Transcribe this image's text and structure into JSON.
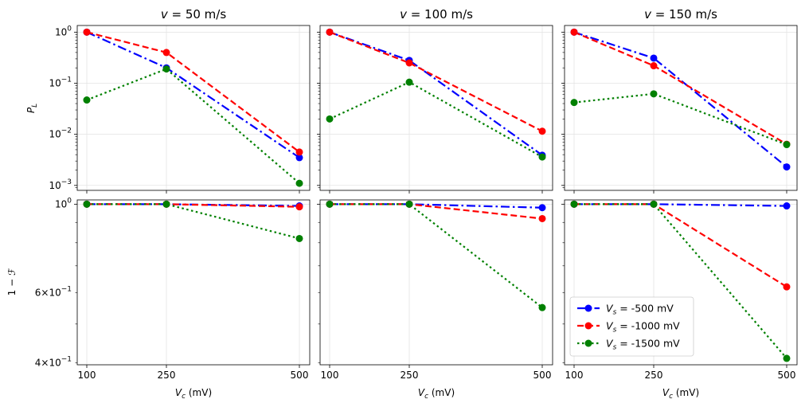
{
  "chart_data": {
    "type": "line",
    "layout": "2x3 grid, shared x-axis per column, shared y-axis per row",
    "x_ticks": [
      100,
      250,
      500
    ],
    "x_label": "V_c (mV)",
    "x_label_parts": {
      "sym": "V",
      "sub": "c",
      "rest": " (mV)"
    },
    "column_titles": [
      {
        "prefix": "v = ",
        "value": "50",
        "unit": " m/s"
      },
      {
        "prefix": "v = ",
        "value": "100",
        "unit": " m/s"
      },
      {
        "prefix": "v = ",
        "value": "150",
        "unit": " m/s"
      }
    ],
    "rows": [
      {
        "name": "P_L",
        "ylabel": {
          "sym": "P",
          "sub": "L"
        },
        "scale": "log",
        "ylim": [
          0.0008,
          1.35
        ],
        "major_ticks": [
          {
            "value": 1,
            "base": "10",
            "exp": "0"
          },
          {
            "value": 0.1,
            "base": "10",
            "exp": "−1"
          },
          {
            "value": 0.01,
            "base": "10",
            "exp": "−2"
          },
          {
            "value": 0.001,
            "base": "10",
            "exp": "−3"
          }
        ]
      },
      {
        "name": "1 - F",
        "ylabel": {
          "text": "1 − ℱ"
        },
        "scale": "log",
        "ylim": [
          0.395,
          1.025
        ],
        "major_ticks": [
          {
            "value": 1,
            "base": "10",
            "exp": "0"
          }
        ],
        "minor_labeled_ticks": [
          {
            "value": 0.6,
            "coef": "6×",
            "base": "10",
            "exp": "−1"
          },
          {
            "value": 0.4,
            "coef": "4×",
            "base": "10",
            "exp": "−1"
          }
        ]
      }
    ],
    "series": [
      {
        "name": "V_s = -500 mV",
        "legend": {
          "sym": "V",
          "sub": "s",
          "rest": " = -500 mV"
        },
        "color": "#0000ff",
        "style": "dashdot"
      },
      {
        "name": "V_s = -1000 mV",
        "legend": {
          "sym": "V",
          "sub": "s",
          "rest": " = -1000 mV"
        },
        "color": "#ff0000",
        "style": "dashed"
      },
      {
        "name": "V_s = -1500 mV",
        "legend": {
          "sym": "V",
          "sub": "s",
          "rest": " = -1500 mV"
        },
        "color": "#008000",
        "style": "dotted"
      }
    ],
    "panels": [
      {
        "row": 0,
        "col": 0,
        "values": [
          [
            1.0,
            0.2,
            0.0035
          ],
          [
            1.0,
            0.4,
            0.0045
          ],
          [
            0.047,
            0.19,
            0.0011
          ]
        ]
      },
      {
        "row": 0,
        "col": 1,
        "values": [
          [
            1.0,
            0.28,
            0.0039
          ],
          [
            1.0,
            0.25,
            0.0115
          ],
          [
            0.02,
            0.105,
            0.0036
          ]
        ]
      },
      {
        "row": 0,
        "col": 2,
        "values": [
          [
            1.0,
            0.31,
            0.0023
          ],
          [
            1.0,
            0.22,
            0.0064
          ],
          [
            0.042,
            0.062,
            0.0063
          ]
        ]
      },
      {
        "row": 1,
        "col": 0,
        "values": [
          [
            1.0,
            1.0,
            0.99
          ],
          [
            1.0,
            1.0,
            0.985
          ],
          [
            1.0,
            1.0,
            0.82
          ]
        ]
      },
      {
        "row": 1,
        "col": 1,
        "values": [
          [
            1.0,
            1.0,
            0.98
          ],
          [
            1.0,
            1.0,
            0.92
          ],
          [
            1.0,
            1.0,
            0.55
          ]
        ]
      },
      {
        "row": 1,
        "col": 2,
        "values": [
          [
            1.0,
            1.0,
            0.99
          ],
          [
            1.0,
            1.0,
            0.62
          ],
          [
            1.0,
            1.0,
            0.41
          ]
        ]
      }
    ],
    "legend_location": "lower-left of bottom-right panel",
    "grid": true
  }
}
